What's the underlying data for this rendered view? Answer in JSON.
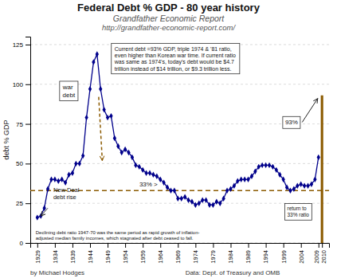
{
  "chart_data": {
    "type": "line",
    "title": "Federal Debt % GDP - 80 year history",
    "subtitle": [
      "Grandfather Economic Report",
      "http://grandfather-economic-report.com/"
    ],
    "y_label": "debt % GDP",
    "x": [
      1929,
      1930,
      1931,
      1932,
      1933,
      1934,
      1935,
      1936,
      1937,
      1938,
      1939,
      1940,
      1941,
      1942,
      1943,
      1944,
      1945,
      1946,
      1947,
      1948,
      1949,
      1950,
      1951,
      1952,
      1953,
      1954,
      1955,
      1956,
      1957,
      1958,
      1959,
      1960,
      1961,
      1962,
      1963,
      1964,
      1965,
      1966,
      1967,
      1968,
      1969,
      1970,
      1971,
      1972,
      1973,
      1974,
      1975,
      1976,
      1977,
      1978,
      1979,
      1980,
      1981,
      1982,
      1983,
      1984,
      1985,
      1986,
      1987,
      1988,
      1989,
      1990,
      1991,
      1992,
      1993,
      1994,
      1995,
      1996,
      1997,
      1998,
      1999,
      2000,
      2001,
      2002,
      2003,
      2004,
      2005,
      2006,
      2007,
      2008,
      2009,
      2010
    ],
    "series": [
      {
        "type": "line",
        "color": "#00008B",
        "marker": "diamond",
        "values": [
          16,
          17,
          22,
          34,
          40,
          40,
          39,
          40,
          38,
          43,
          44,
          50,
          50,
          55,
          79,
          97,
          114,
          119,
          97,
          84,
          79,
          80,
          66,
          61,
          57,
          59,
          57,
          54,
          49,
          48,
          46,
          44,
          44,
          43,
          42,
          40,
          38,
          35,
          33,
          33,
          28,
          28,
          29,
          27,
          26,
          24,
          25,
          27,
          27,
          24,
          24,
          26,
          25,
          28,
          33,
          34,
          36,
          39,
          40,
          40,
          40,
          42,
          45,
          48,
          49,
          49,
          49,
          48,
          46,
          43,
          40,
          35,
          33,
          34,
          36,
          37,
          36,
          36,
          37,
          40,
          54,
          null
        ]
      },
      {
        "type": "bar",
        "color": "#8B5A00",
        "values": [
          null,
          null,
          null,
          null,
          null,
          null,
          null,
          null,
          null,
          null,
          null,
          null,
          null,
          null,
          null,
          null,
          null,
          null,
          null,
          null,
          null,
          null,
          null,
          null,
          null,
          null,
          null,
          null,
          null,
          null,
          null,
          null,
          null,
          null,
          null,
          null,
          null,
          null,
          null,
          null,
          null,
          null,
          null,
          null,
          null,
          null,
          null,
          null,
          null,
          null,
          null,
          null,
          null,
          null,
          null,
          null,
          null,
          null,
          null,
          null,
          null,
          null,
          null,
          null,
          null,
          null,
          null,
          null,
          null,
          null,
          null,
          null,
          null,
          null,
          null,
          null,
          null,
          null,
          null,
          null,
          null,
          93
        ]
      }
    ],
    "ref_line": {
      "value": 33,
      "color": "#8B5A00",
      "line_style": "dashed",
      "label": "33% >"
    },
    "xlim": [
      1927,
      2012
    ],
    "xticks": [
      1929,
      1934,
      1939,
      1944,
      1949,
      1954,
      1959,
      1964,
      1969,
      1974,
      1979,
      1984,
      1989,
      1994,
      1999,
      2004,
      2009,
      2010
    ],
    "ylim": [
      0,
      130
    ],
    "yticks": [
      0,
      25,
      50,
      75,
      100,
      125
    ],
    "grid": true,
    "annotations": [
      {
        "text": "Current debt =93% GDP, triple 1974 & '81 ratio,\neven higher than Korean war time.  If current ratio\nwas same as 1974's, today's debt would be $4.7\ntrillion instead of $14 trillion, or $9.3 trillion less."
      },
      {
        "text": "war\ndebt"
      },
      {
        "text": "New Deal\ndebt rise"
      },
      {
        "text": "93%"
      },
      {
        "text": "return to\n33% ratio"
      },
      {
        "text": "Declining debt ratio 1947-70 was the same period as rapid growth of inflation-\nadjusted median family incomes, which stagnated after debt ceased to fall."
      }
    ],
    "footer": [
      "by Michael Hodges",
      "Data: Dept. of Treasury and OMB"
    ]
  }
}
